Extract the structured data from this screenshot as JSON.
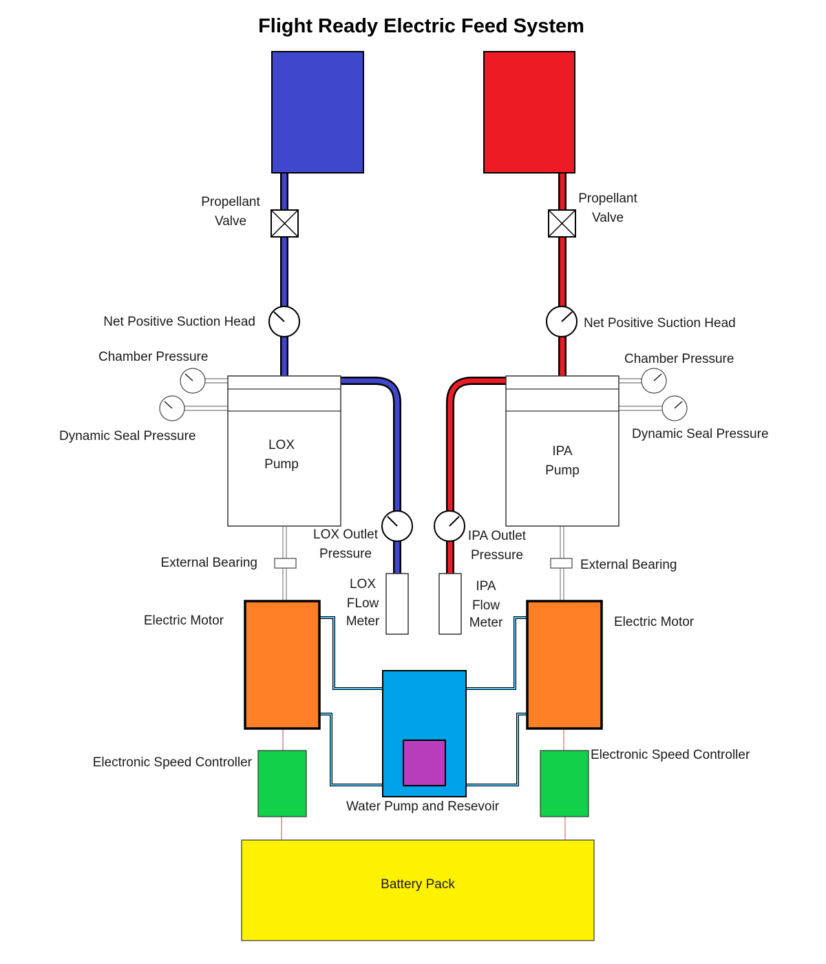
{
  "title": "Flight Ready Electric Feed System",
  "colors": {
    "lox": "#3f48cc",
    "ipa": "#ed1c24",
    "motor": "#ff7f27",
    "esc": "#12d04a",
    "water": "#00a2e8",
    "reservoir": "#b83dba",
    "battery": "#fff200",
    "coolant_line": "#2a7fb0"
  },
  "icons": {
    "gauge": "pressure-gauge-icon",
    "valve": "valve-icon"
  },
  "lox": {
    "valve_label_1": "Propellant",
    "valve_label_2": "Valve",
    "npsh_label": "Net Positive Suction Head",
    "chamber_label": "Chamber Pressure",
    "seal_label": "Dynamic Seal Pressure",
    "pump_label_1": "LOX",
    "pump_label_2": "Pump",
    "outlet_label_1": "LOX Outlet",
    "outlet_label_2": "Pressure",
    "flow_label_1": "LOX",
    "flow_label_2": "FLow",
    "flow_label_3": "Meter",
    "bearing_label": "External Bearing",
    "motor_label": "Electric Motor",
    "esc_label": "Electronic Speed Controller"
  },
  "ipa": {
    "valve_label_1": "Propellant",
    "valve_label_2": "Valve",
    "npsh_label": "Net Positive Suction Head",
    "chamber_label": "Chamber Pressure",
    "seal_label": "Dynamic Seal Pressure",
    "pump_label_1": "IPA",
    "pump_label_2": "Pump",
    "outlet_label_1": "IPA Outlet",
    "outlet_label_2": "Pressure",
    "flow_label_1": "IPA",
    "flow_label_2": "Flow",
    "flow_label_3": "Meter",
    "bearing_label": "External Bearing",
    "motor_label": "Electric Motor",
    "esc_label": "Electronic Speed Controller"
  },
  "water_label": "Water Pump and Resevoir",
  "battery_label": "Battery Pack"
}
